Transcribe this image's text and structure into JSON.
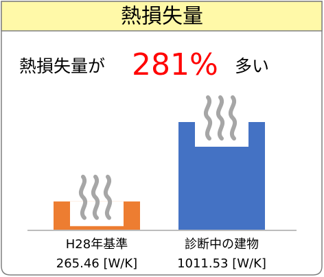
{
  "title": "熱損失量",
  "headline": {
    "prefix": "熱損失量が",
    "highlight": "281%",
    "suffix": "多い"
  },
  "chart_data": {
    "type": "bar",
    "categories": [
      "H28年基準",
      "診断中の建物"
    ],
    "values": [
      265.46,
      1011.53
    ],
    "value_labels": [
      "265.46 [W/K]",
      "1011.53 [W/K]"
    ],
    "colors": [
      "#ed7d31",
      "#4472c4"
    ]
  }
}
